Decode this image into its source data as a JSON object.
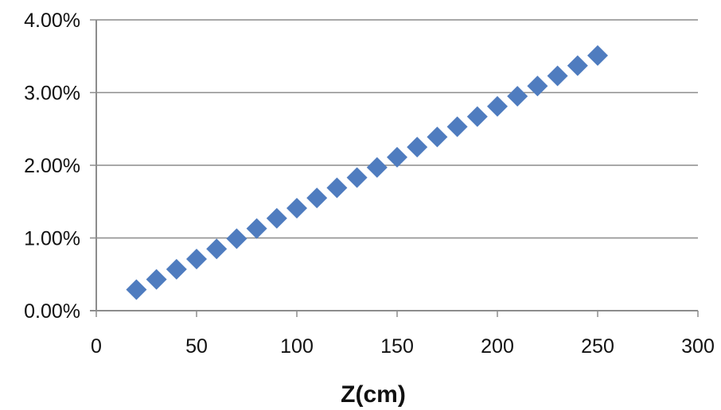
{
  "chart_data": {
    "type": "scatter",
    "title": "",
    "xlabel": "Z(cm)",
    "ylabel": "",
    "xlim": [
      0,
      300
    ],
    "ylim": [
      0,
      0.04
    ],
    "x_ticks": [
      0,
      50,
      100,
      150,
      200,
      250,
      300
    ],
    "x_tick_labels": [
      "0",
      "50",
      "100",
      "150",
      "200",
      "250",
      "300"
    ],
    "y_ticks": [
      0,
      0.01,
      0.02,
      0.03,
      0.04
    ],
    "y_tick_labels": [
      "0.00%",
      "1.00%",
      "2.00%",
      "3.00%",
      "4.00%"
    ],
    "grid": "horizontal",
    "marker": "diamond",
    "series": [
      {
        "color": "#4F7CBF",
        "x": [
          20,
          30,
          40,
          50,
          60,
          70,
          80,
          90,
          100,
          110,
          120,
          130,
          140,
          150,
          160,
          170,
          180,
          190,
          200,
          210,
          220,
          230,
          240,
          250
        ],
        "y": [
          0.0029,
          0.0043,
          0.0057,
          0.0071,
          0.0085,
          0.0099,
          0.0113,
          0.0127,
          0.0141,
          0.0155,
          0.0169,
          0.0183,
          0.0197,
          0.0211,
          0.0225,
          0.0239,
          0.0253,
          0.0267,
          0.0281,
          0.0295,
          0.0309,
          0.0323,
          0.0337,
          0.0351
        ]
      }
    ]
  }
}
